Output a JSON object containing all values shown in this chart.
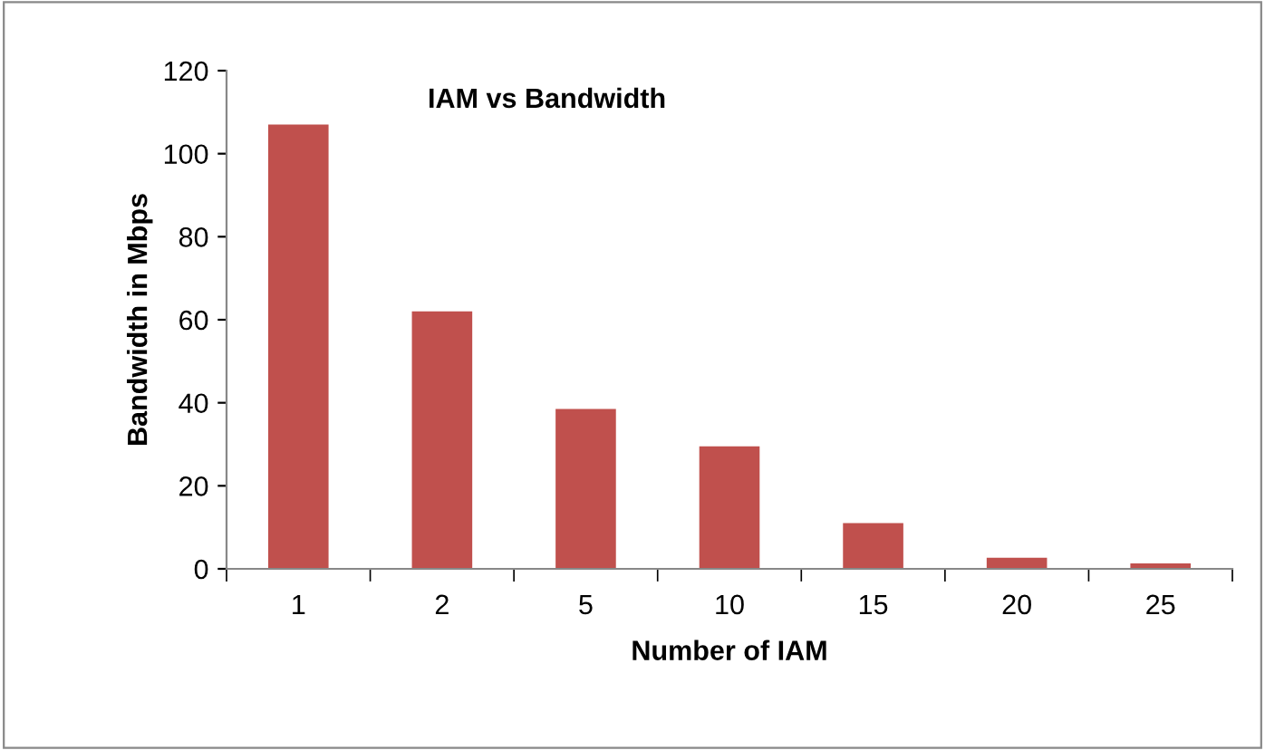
{
  "chart_data": {
    "type": "bar",
    "title": "IAM vs Bandwidth",
    "xlabel": "Number of IAM",
    "ylabel": "Bandwidth in Mbps",
    "categories": [
      "1",
      "2",
      "5",
      "10",
      "15",
      "20",
      "25"
    ],
    "values": [
      107,
      62,
      38.5,
      29.5,
      11,
      2.7,
      1.3
    ],
    "color": "#c0504d",
    "ylim": [
      0,
      120
    ],
    "yticks": [
      0,
      20,
      40,
      60,
      80,
      100,
      120
    ],
    "grid": false,
    "legend": false
  }
}
